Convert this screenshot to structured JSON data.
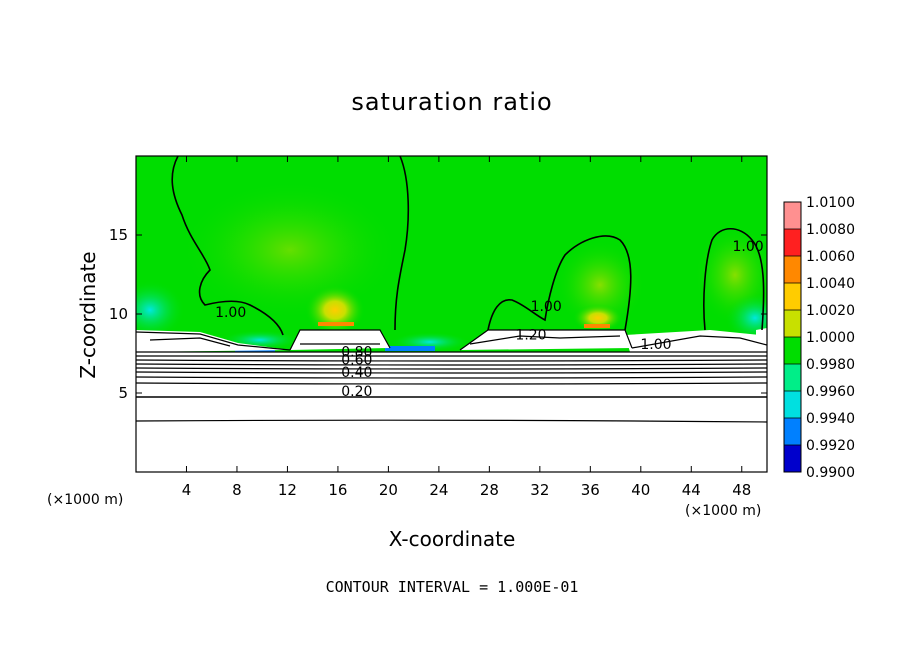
{
  "chart_data": {
    "type": "heatmap",
    "title": "saturation ratio",
    "xlabel": "X-coordinate",
    "ylabel": "Z-coordinate",
    "x_unit": "(×1000 m)",
    "y_unit": "(×1000 m)",
    "xlim": [
      0,
      50
    ],
    "ylim": [
      0,
      20
    ],
    "x_ticks": [
      4,
      8,
      12,
      16,
      20,
      24,
      28,
      32,
      36,
      40,
      44,
      48
    ],
    "y_ticks": [
      5,
      10,
      15
    ],
    "colorbar": {
      "levels": [
        "1.0100",
        "1.0080",
        "1.0060",
        "1.0040",
        "1.0020",
        "1.0000",
        "0.9980",
        "0.9960",
        "0.9940",
        "0.9920",
        "0.9900"
      ],
      "colors": [
        "#ff9090",
        "#ff2020",
        "#ff8800",
        "#ffcc00",
        "#c8e000",
        "#00dd00",
        "#00ee88",
        "#00e0e0",
        "#0080ff",
        "#0000cc",
        "#6600aa"
      ]
    },
    "contour_labels": [
      {
        "text": "1.00",
        "x": 7.5,
        "z": 9.8
      },
      {
        "text": "1.00",
        "x": 32.5,
        "z": 10.2
      },
      {
        "text": "1.00",
        "x": 48.5,
        "z": 14.0
      },
      {
        "text": "1.00",
        "x": 41.2,
        "z": 7.8
      },
      {
        "text": "1.20",
        "x": 31.3,
        "z": 8.4
      },
      {
        "text": "0.80",
        "x": 17.5,
        "z": 7.3
      },
      {
        "text": "0.60",
        "x": 17.5,
        "z": 6.8
      },
      {
        "text": "0.40",
        "x": 17.5,
        "z": 6.0
      },
      {
        "text": "0.20",
        "x": 17.5,
        "z": 4.8
      }
    ],
    "contour_interval": "CONTOUR INTERVAL = 1.000E-01"
  }
}
